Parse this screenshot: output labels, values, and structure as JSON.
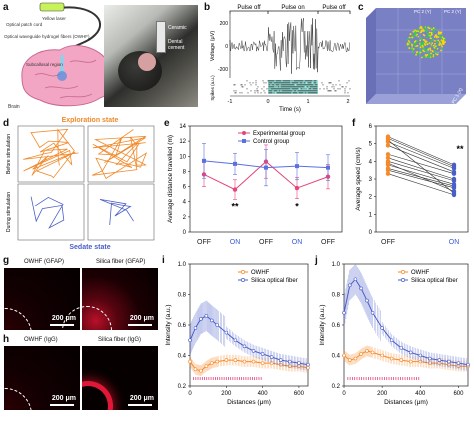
{
  "panel_labels": [
    "a",
    "b",
    "c",
    "d",
    "e",
    "f",
    "g",
    "h",
    "i",
    "j"
  ],
  "panel_a": {
    "labels": {
      "laser": "Yellow laser",
      "patch_cord": "Optical patch cord",
      "waveguide": "Optical waveguide hydrogel fibers (OWHF)",
      "region": "Subcallosal region",
      "brain": "Brain",
      "ceramic": "Ceramic",
      "dental": "Dental cement"
    },
    "colors": {
      "brain": "#f3a6c4",
      "fiber": "#7fd6f0",
      "laser": "#c8f25a"
    }
  },
  "panel_b": {
    "pulse_labels": [
      "Pulse off",
      "Pulse on",
      "Pulse off"
    ],
    "ylabel_top": "Voltage (μV)",
    "yticks_top": [
      "200",
      "0",
      "-200"
    ],
    "ylabel_bottom": "Spikes (a.u.)",
    "xlabel": "Time (s)",
    "xticks": [
      "-1",
      "0",
      "1",
      "2"
    ],
    "highlight": "#9fe8e0"
  },
  "panel_c": {
    "axis_labels": [
      "PC 2 (Y)",
      "PC 2 (Y)",
      "PC 1 (X)"
    ],
    "box_color": "#8a92cf",
    "cluster_colors": [
      "#ffd800",
      "#2fd24a"
    ]
  },
  "panel_d": {
    "title_top": "Exploration state",
    "title_bottom": "Sedate state",
    "row_labels": [
      "Before stimulation",
      "During stimulation"
    ],
    "colors": {
      "top": "#f0892a",
      "bottom": "#4a5ec8"
    }
  },
  "chart_data": [
    {
      "type": "line",
      "panel": "e",
      "ylabel": "Average distance travelled (m)",
      "ylim": [
        0,
        14
      ],
      "yticks": [
        0,
        2,
        4,
        6,
        8,
        10,
        12,
        14
      ],
      "categories": [
        "OFF",
        "ON",
        "OFF",
        "ON",
        "OFF"
      ],
      "category_colors": [
        "#222222",
        "#3a5bd9",
        "#222222",
        "#3a5bd9",
        "#222222"
      ],
      "series": [
        {
          "name": "Experimental group",
          "color": "#e5457a",
          "values": [
            7.6,
            5.6,
            9.3,
            5.8,
            7.3
          ],
          "errors": [
            1.6,
            1.3,
            2.2,
            1.4,
            1.6
          ]
        },
        {
          "name": "Control group",
          "color": "#5b6fe0",
          "values": [
            9.4,
            9.0,
            8.5,
            8.7,
            8.5
          ],
          "errors": [
            2.3,
            1.4,
            2.4,
            1.8,
            1.7
          ]
        }
      ],
      "annotations": [
        {
          "text": "**",
          "category_index": 1,
          "y": 3.0
        },
        {
          "text": "*",
          "category_index": 3,
          "y": 3.0
        }
      ],
      "legend": "top"
    },
    {
      "type": "scatter",
      "panel": "f",
      "ylabel": "Average speed (cm/s)",
      "ylim": [
        0,
        6
      ],
      "yticks": [
        0,
        1,
        2,
        3,
        4,
        5,
        6
      ],
      "categories": [
        "OFF",
        "ON"
      ],
      "category_colors": [
        "#222222",
        "#3a5bd9"
      ],
      "pairs": [
        [
          5.4,
          3.8
        ],
        [
          5.3,
          3.7
        ],
        [
          5.1,
          3.6
        ],
        [
          4.9,
          3.4
        ],
        [
          4.4,
          3.3
        ],
        [
          4.2,
          3.0
        ],
        [
          4.0,
          2.9
        ],
        [
          3.8,
          2.7
        ],
        [
          3.6,
          2.6
        ],
        [
          3.5,
          2.5
        ],
        [
          3.9,
          2.3
        ],
        [
          5.2,
          2.2
        ],
        [
          3.3,
          2.1
        ]
      ],
      "point_colors": [
        "#f58a2a",
        "#4a5ec8"
      ],
      "annotation": "**"
    },
    {
      "type": "line",
      "panel": "i",
      "xlabel": "Distances (μm)",
      "ylabel": "Intensity (a.u.)",
      "xlim": [
        0,
        650
      ],
      "ylim": [
        0.2,
        1.0
      ],
      "xticks": [
        0,
        200,
        400,
        600
      ],
      "yticks": [
        0.2,
        0.4,
        0.6,
        0.8,
        1.0
      ],
      "series": [
        {
          "name": "OWHF",
          "color": "#f58a2a",
          "x": [
            0,
            30,
            60,
            90,
            120,
            150,
            200,
            250,
            300,
            350,
            400,
            450,
            500,
            550,
            600,
            650
          ],
          "y": [
            0.36,
            0.31,
            0.3,
            0.33,
            0.35,
            0.36,
            0.37,
            0.37,
            0.36,
            0.36,
            0.35,
            0.35,
            0.34,
            0.33,
            0.33,
            0.32
          ]
        },
        {
          "name": "Silica optical fiber",
          "color": "#4a5ec8",
          "x": [
            0,
            30,
            60,
            90,
            120,
            150,
            200,
            250,
            300,
            350,
            400,
            450,
            500,
            550,
            600,
            650
          ],
          "y": [
            0.5,
            0.58,
            0.64,
            0.66,
            0.63,
            0.6,
            0.55,
            0.5,
            0.46,
            0.43,
            0.41,
            0.39,
            0.37,
            0.36,
            0.35,
            0.34
          ]
        }
      ],
      "significance_marker_color": "#e5457a",
      "legend": "top-right"
    },
    {
      "type": "line",
      "panel": "j",
      "xlabel": "Distances (μm)",
      "ylabel": "Intensity (a.u.)",
      "xlim": [
        0,
        650
      ],
      "ylim": [
        0.2,
        1.0
      ],
      "xticks": [
        0,
        200,
        400,
        600
      ],
      "yticks": [
        0.2,
        0.4,
        0.6,
        0.8,
        1.0
      ],
      "series": [
        {
          "name": "OWHF",
          "color": "#f58a2a",
          "x": [
            0,
            30,
            60,
            90,
            120,
            150,
            200,
            250,
            300,
            350,
            400,
            450,
            500,
            550,
            600,
            650
          ],
          "y": [
            0.4,
            0.37,
            0.38,
            0.41,
            0.43,
            0.42,
            0.4,
            0.38,
            0.37,
            0.36,
            0.36,
            0.35,
            0.35,
            0.34,
            0.33,
            0.33
          ]
        },
        {
          "name": "Silica optical fiber",
          "color": "#4a5ec8",
          "x": [
            0,
            30,
            60,
            90,
            120,
            150,
            200,
            250,
            300,
            350,
            400,
            450,
            500,
            550,
            600,
            650
          ],
          "y": [
            0.68,
            0.86,
            0.9,
            0.84,
            0.76,
            0.68,
            0.58,
            0.5,
            0.45,
            0.42,
            0.4,
            0.38,
            0.37,
            0.36,
            0.35,
            0.34
          ]
        }
      ],
      "significance_marker_color": "#e5457a",
      "legend": "top-right"
    }
  ],
  "panel_g": {
    "left": "OWHF (GFAP)",
    "right": "Silica fiber (GFAP)",
    "scale": "200 μm"
  },
  "panel_h": {
    "left": "OWHF (IgG)",
    "right": "Silica fiber (IgG)",
    "scale": "200 μm"
  }
}
